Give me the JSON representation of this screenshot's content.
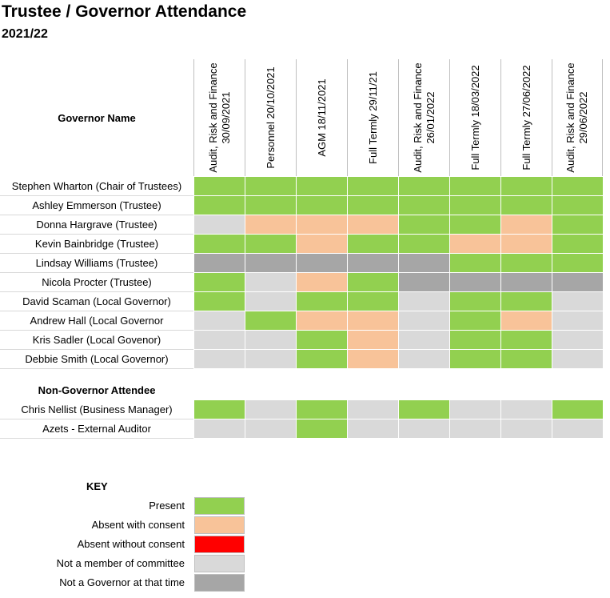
{
  "title": "Trustee / Governor Attendance",
  "subtitle": "2021/22",
  "name_header": "Governor Name",
  "colors": {
    "P": "#92d050",
    "A": "#f8c399",
    "U": "#ff0000",
    "N": "#d9d9d9",
    "G": "#a6a6a6"
  },
  "meetings": [
    "Audit, Risk and Finance 30/09/2021",
    "Personnel 20/10/2021",
    "AGM 18/11/2021",
    "Full Termly 29/11/21",
    "Audit, Risk and Finance 26/01/2022",
    "Full Termly 18/03/2022",
    "Full Termly 27/06/2022",
    "Audit, Risk and Finance 29/06/2022"
  ],
  "governors": [
    {
      "name": "Stephen Wharton (Chair of Trustees)",
      "att": [
        "P",
        "P",
        "P",
        "P",
        "P",
        "P",
        "P",
        "P"
      ]
    },
    {
      "name": "Ashley Emmerson (Trustee)",
      "att": [
        "P",
        "P",
        "P",
        "P",
        "P",
        "P",
        "P",
        "P"
      ]
    },
    {
      "name": "Donna Hargrave (Trustee)",
      "att": [
        "N",
        "A",
        "A",
        "A",
        "P",
        "P",
        "A",
        "P"
      ]
    },
    {
      "name": "Kevin Bainbridge (Trustee)",
      "att": [
        "P",
        "P",
        "A",
        "P",
        "P",
        "A",
        "A",
        "P"
      ]
    },
    {
      "name": "Lindsay Williams (Trustee)",
      "att": [
        "G",
        "G",
        "G",
        "G",
        "G",
        "P",
        "P",
        "P"
      ]
    },
    {
      "name": "Nicola Procter (Trustee)",
      "att": [
        "P",
        "N",
        "A",
        "P",
        "G",
        "G",
        "G",
        "G"
      ]
    },
    {
      "name": "David Scaman (Local Governor)",
      "att": [
        "P",
        "N",
        "P",
        "P",
        "N",
        "P",
        "P",
        "N"
      ]
    },
    {
      "name": "Andrew Hall (Local Governor",
      "att": [
        "N",
        "P",
        "A",
        "A",
        "N",
        "P",
        "A",
        "N"
      ]
    },
    {
      "name": "Kris Sadler (Local Govenor)",
      "att": [
        "N",
        "N",
        "P",
        "A",
        "N",
        "P",
        "P",
        "N"
      ]
    },
    {
      "name": "Debbie Smith (Local Governor)",
      "att": [
        "N",
        "N",
        "P",
        "A",
        "N",
        "P",
        "P",
        "N"
      ]
    }
  ],
  "non_governor_header": "Non-Governor Attendee",
  "non_governors": [
    {
      "name": "Chris Nellist (Business Manager)",
      "att": [
        "P",
        "N",
        "P",
        "N",
        "P",
        "N",
        "N",
        "P"
      ]
    },
    {
      "name": "Azets - External Auditor",
      "att": [
        "N",
        "N",
        "P",
        "N",
        "N",
        "N",
        "N",
        "N"
      ]
    }
  ],
  "key": {
    "title": "KEY",
    "items": [
      {
        "label": "Present",
        "code": "P"
      },
      {
        "label": "Absent with consent",
        "code": "A"
      },
      {
        "label": "Absent without consent",
        "code": "U"
      },
      {
        "label": "Not a member of committee",
        "code": "N"
      },
      {
        "label": "Not a Governor at that time",
        "code": "G"
      }
    ]
  }
}
